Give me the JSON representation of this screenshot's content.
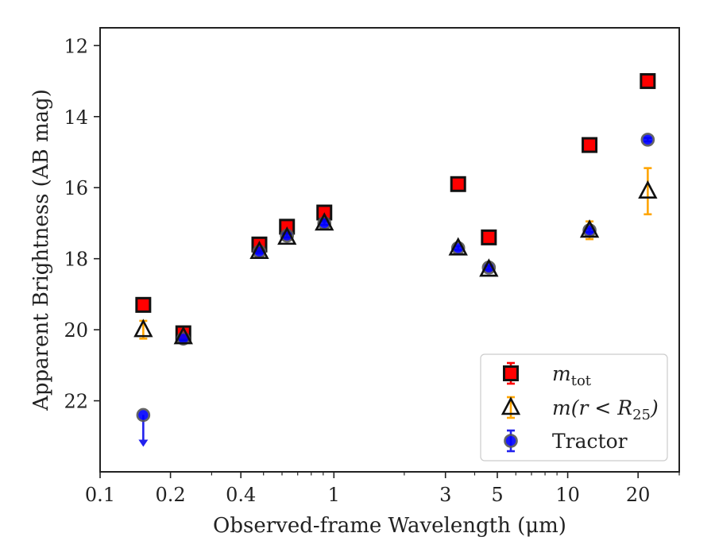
{
  "chart_data": {
    "type": "scatter",
    "title": "",
    "xlabel": "Observed-frame Wavelength (μm)",
    "ylabel": "Apparent Brightness (AB mag)",
    "xscale": "log",
    "xlim": [
      0.1,
      30
    ],
    "ylim": [
      24.0,
      11.5
    ],
    "y_inverted": true,
    "grid": false,
    "legend_position": "bottom-right",
    "x_ticks": [
      {
        "value": 0.1,
        "label": "0.1"
      },
      {
        "value": 0.2,
        "label": "0.2"
      },
      {
        "value": 0.4,
        "label": "0.4"
      },
      {
        "value": 1,
        "label": "1"
      },
      {
        "value": 3,
        "label": "3"
      },
      {
        "value": 5,
        "label": "5"
      },
      {
        "value": 10,
        "label": "10"
      },
      {
        "value": 20,
        "label": "20"
      }
    ],
    "y_ticks": [
      {
        "value": 12,
        "label": "12"
      },
      {
        "value": 14,
        "label": "14"
      },
      {
        "value": 16,
        "label": "16"
      },
      {
        "value": 18,
        "label": "18"
      },
      {
        "value": 20,
        "label": "20"
      },
      {
        "value": 22,
        "label": "22"
      }
    ],
    "series": [
      {
        "name": "m_tot",
        "legend_main": "m",
        "legend_sub": "tot",
        "marker": "square",
        "fill": "#ff0000",
        "edge": "#111111",
        "errcolor": "#ff0000",
        "points": [
          {
            "x": 0.153,
            "y": 19.3,
            "err": 0.05
          },
          {
            "x": 0.227,
            "y": 20.1,
            "err": 0.08
          },
          {
            "x": 0.48,
            "y": 17.6,
            "err": 0.05
          },
          {
            "x": 0.63,
            "y": 17.1,
            "err": 0.05
          },
          {
            "x": 0.91,
            "y": 16.7,
            "err": 0.05
          },
          {
            "x": 3.4,
            "y": 15.9,
            "err": 0.05
          },
          {
            "x": 4.6,
            "y": 17.4,
            "err": 0.05
          },
          {
            "x": 12.4,
            "y": 14.8,
            "err": 0.05
          },
          {
            "x": 22.0,
            "y": 13.0,
            "err": 0.05
          }
        ]
      },
      {
        "name": "m(r < R25)",
        "legend_main": "m(r < R",
        "legend_sub": "25",
        "legend_close": ")",
        "marker": "triangle",
        "fill": "none",
        "edge": "#111111",
        "errcolor": "#ffa500",
        "points": [
          {
            "x": 0.153,
            "y": 20.0,
            "err": 0.25
          },
          {
            "x": 0.227,
            "y": 20.2,
            "err": 0.05
          },
          {
            "x": 0.48,
            "y": 17.8,
            "err": 0.05
          },
          {
            "x": 0.63,
            "y": 17.4,
            "err": 0.05
          },
          {
            "x": 0.91,
            "y": 17.0,
            "err": 0.05
          },
          {
            "x": 3.4,
            "y": 17.7,
            "err": 0.05
          },
          {
            "x": 4.6,
            "y": 18.3,
            "err": 0.05
          },
          {
            "x": 12.4,
            "y": 17.2,
            "err": 0.25
          },
          {
            "x": 22.0,
            "y": 16.1,
            "err": 0.65
          }
        ]
      },
      {
        "name": "Tractor",
        "legend_main": "Tractor",
        "marker": "circle",
        "fill": "#0000ff",
        "edge": "#555555",
        "errcolor": "#2222ee",
        "points": [
          {
            "x": 0.153,
            "y": 22.4,
            "upper_limit": true
          },
          {
            "x": 0.227,
            "y": 20.25,
            "err": 0.05
          },
          {
            "x": 0.48,
            "y": 17.8,
            "err": 0.05
          },
          {
            "x": 0.63,
            "y": 17.35,
            "err": 0.05
          },
          {
            "x": 0.91,
            "y": 17.0,
            "err": 0.05
          },
          {
            "x": 3.4,
            "y": 17.7,
            "err": 0.05
          },
          {
            "x": 4.6,
            "y": 18.25,
            "err": 0.05
          },
          {
            "x": 12.4,
            "y": 17.2,
            "err": 0.05
          },
          {
            "x": 22.0,
            "y": 14.65,
            "err": 0.05
          }
        ]
      }
    ]
  }
}
